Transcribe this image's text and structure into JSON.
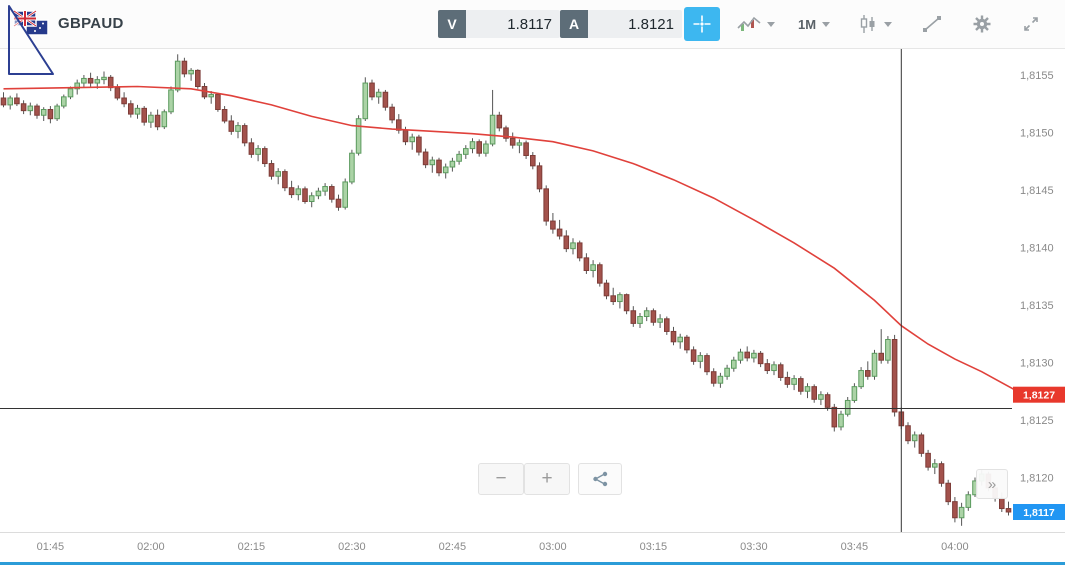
{
  "toolbar": {
    "symbol": "GBPAUD",
    "sell_label": "V",
    "sell_price": "1.8117",
    "buy_label": "A",
    "buy_price": "1.8121",
    "timeframe": "1M"
  },
  "chart_controls": {
    "zoom_out": "−",
    "zoom_in": "+",
    "scroll_to_latest": "»"
  },
  "colors": {
    "accent_blue": "#3db7f0",
    "bottom_bar": "#2b9cd8",
    "candle_up_fill": "#abd3a6",
    "candle_up_stroke": "#5b9a5e",
    "candle_down_fill": "#a3524c",
    "candle_down_stroke": "#7d3d38",
    "ma_line": "#e0413b",
    "tag_red": "#e8382c",
    "tag_blue": "#2196f3"
  },
  "chart_data": {
    "type": "candlestick",
    "symbol": "GBPAUD",
    "timeframe_minutes": 1,
    "start_time": "01:38",
    "price_encoding": "price = 1.81 + pips/1000",
    "y_axis": {
      "labels": [
        "1,8155",
        "1,8150",
        "1,8145",
        "1,8140",
        "1,8135",
        "1,8130",
        "1,8125",
        "1,8120"
      ],
      "pips": [
        55,
        50,
        45,
        40,
        35,
        30,
        25,
        20
      ]
    },
    "x_axis": [
      "01:45",
      "02:00",
      "02:15",
      "02:30",
      "02:45",
      "03:00",
      "03:15",
      "03:30",
      "03:45",
      "04:00"
    ],
    "hline_pips": 26.0,
    "vline_time": "03:52",
    "ma_price_tag": {
      "text": "1,8127",
      "pips": 27.2
    },
    "last_price_tag": {
      "text": "1,8117",
      "pips": 17.0
    },
    "ma_points": [
      [
        0,
        53.8
      ],
      [
        10,
        53.9
      ],
      [
        20,
        54.0
      ],
      [
        28,
        53.8
      ],
      [
        34,
        53.2
      ],
      [
        40,
        52.4
      ],
      [
        46,
        51.4
      ],
      [
        52,
        50.6
      ],
      [
        58,
        50.3
      ],
      [
        64,
        50.1
      ],
      [
        70,
        49.9
      ],
      [
        76,
        49.6
      ],
      [
        82,
        49.2
      ],
      [
        88,
        48.4
      ],
      [
        94,
        47.3
      ],
      [
        100,
        45.9
      ],
      [
        106,
        44.3
      ],
      [
        112,
        42.4
      ],
      [
        118,
        40.4
      ],
      [
        124,
        38.2
      ],
      [
        130,
        35.4
      ],
      [
        134,
        33.2
      ],
      [
        138,
        31.6
      ],
      [
        142,
        30.3
      ],
      [
        146,
        29.2
      ],
      [
        151,
        27.6
      ]
    ],
    "candles_ohlc_pips": [
      [
        53,
        53.5,
        52.2,
        52.4
      ],
      [
        52.4,
        53.2,
        52,
        53
      ],
      [
        53,
        53.4,
        52.3,
        52.5
      ],
      [
        52.5,
        52.8,
        51.6,
        51.9
      ],
      [
        51.9,
        52.6,
        51.5,
        52.3
      ],
      [
        52.3,
        52.5,
        51.2,
        51.5
      ],
      [
        51.5,
        52.2,
        51,
        52
      ],
      [
        52,
        52.3,
        50.8,
        51.2
      ],
      [
        51.2,
        52.5,
        51,
        52.3
      ],
      [
        52.3,
        53.3,
        52.1,
        53.1
      ],
      [
        53.1,
        54,
        52.9,
        53.8
      ],
      [
        53.8,
        54.6,
        53.3,
        54.3
      ],
      [
        54.3,
        55,
        53.9,
        54.7
      ],
      [
        54.7,
        55.2,
        54,
        54.3
      ],
      [
        54.3,
        54.9,
        53.8,
        54.6
      ],
      [
        54.6,
        55.3,
        54.2,
        54.8
      ],
      [
        54.8,
        55,
        53.6,
        53.9
      ],
      [
        53.9,
        54.2,
        52.8,
        53
      ],
      [
        53,
        53.5,
        52.2,
        52.5
      ],
      [
        52.5,
        52.8,
        51.3,
        51.6
      ],
      [
        51.6,
        52.4,
        51.2,
        52.1
      ],
      [
        52.1,
        52.3,
        50.6,
        50.9
      ],
      [
        50.9,
        51.8,
        50.4,
        51.5
      ],
      [
        51.5,
        52,
        50.2,
        50.5
      ],
      [
        50.5,
        52,
        50.3,
        51.8
      ],
      [
        51.8,
        54,
        51.6,
        53.7
      ],
      [
        53.7,
        56.8,
        53.5,
        56.2
      ],
      [
        56.2,
        56.5,
        54.8,
        55.1
      ],
      [
        55.1,
        55.6,
        54.5,
        55.4
      ],
      [
        55.4,
        55.5,
        53.8,
        54
      ],
      [
        54,
        54.3,
        52.9,
        53.1
      ],
      [
        53.1,
        53.6,
        52.5,
        53.3
      ],
      [
        53.3,
        53.4,
        51.8,
        52
      ],
      [
        52,
        52.3,
        50.8,
        51
      ],
      [
        51,
        51.5,
        49.8,
        50.1
      ],
      [
        50.1,
        50.9,
        49.5,
        50.6
      ],
      [
        50.6,
        50.8,
        48.8,
        49.1
      ],
      [
        49.1,
        49.5,
        47.8,
        48.1
      ],
      [
        48.1,
        48.9,
        47.5,
        48.6
      ],
      [
        48.6,
        48.8,
        47,
        47.3
      ],
      [
        47.3,
        47.6,
        45.9,
        46.2
      ],
      [
        46.2,
        46.9,
        45.5,
        46.6
      ],
      [
        46.6,
        46.8,
        44.9,
        45.2
      ],
      [
        45.2,
        45.8,
        44.3,
        44.6
      ],
      [
        44.6,
        45.4,
        44.1,
        45.1
      ],
      [
        45.1,
        45.3,
        43.8,
        44
      ],
      [
        44,
        44.8,
        43.5,
        44.5
      ],
      [
        44.5,
        45.2,
        44.2,
        44.9
      ],
      [
        44.9,
        45.6,
        44.5,
        45.3
      ],
      [
        45.3,
        45.5,
        43.9,
        44.2
      ],
      [
        44.2,
        44.6,
        43.2,
        43.5
      ],
      [
        43.5,
        46,
        43.3,
        45.7
      ],
      [
        45.7,
        48.5,
        45.5,
        48.2
      ],
      [
        48.2,
        51.5,
        48,
        51.2
      ],
      [
        51.2,
        54.8,
        51,
        54.3
      ],
      [
        54.3,
        54.6,
        52.8,
        53.1
      ],
      [
        53.1,
        53.8,
        52.5,
        53.5
      ],
      [
        53.5,
        53.7,
        51.9,
        52.2
      ],
      [
        52.2,
        52.5,
        50.8,
        51.1
      ],
      [
        51.1,
        51.6,
        49.9,
        50.2
      ],
      [
        50.2,
        50.5,
        48.9,
        49.2
      ],
      [
        49.2,
        49.9,
        48.5,
        49.6
      ],
      [
        49.6,
        49.8,
        48,
        48.3
      ],
      [
        48.3,
        48.6,
        46.9,
        47.2
      ],
      [
        47.2,
        47.9,
        46.5,
        47.6
      ],
      [
        47.6,
        47.8,
        46.2,
        46.5
      ],
      [
        46.5,
        47.3,
        46,
        47
      ],
      [
        47,
        47.8,
        46.6,
        47.5
      ],
      [
        47.5,
        48.4,
        47.2,
        48.1
      ],
      [
        48.1,
        48.9,
        47.7,
        48.6
      ],
      [
        48.6,
        49.5,
        48.2,
        49.2
      ],
      [
        49.2,
        49.4,
        47.9,
        48.2
      ],
      [
        48.2,
        49.3,
        47.9,
        49
      ],
      [
        49,
        53.7,
        48.8,
        51.5
      ],
      [
        51.5,
        51.8,
        50.1,
        50.4
      ],
      [
        50.4,
        50.6,
        49.2,
        49.5
      ],
      [
        49.5,
        50,
        48.6,
        48.9
      ],
      [
        48.9,
        49.4,
        48.2,
        49.1
      ],
      [
        49.1,
        49.3,
        47.7,
        48
      ],
      [
        48,
        48.3,
        46.8,
        47.1
      ],
      [
        47.1,
        47.4,
        44.8,
        45.1
      ],
      [
        45.1,
        45.4,
        41.9,
        42.3
      ],
      [
        42.3,
        43,
        41.2,
        41.6
      ],
      [
        41.6,
        42.4,
        40.7,
        41
      ],
      [
        41,
        41.5,
        39.6,
        39.9
      ],
      [
        39.9,
        40.8,
        39.4,
        40.4
      ],
      [
        40.4,
        40.6,
        38.8,
        39.1
      ],
      [
        39.1,
        39.5,
        37.7,
        38
      ],
      [
        38,
        38.9,
        37.4,
        38.5
      ],
      [
        38.5,
        38.7,
        36.6,
        36.9
      ],
      [
        36.9,
        37.2,
        35.5,
        35.8
      ],
      [
        35.8,
        36.5,
        35,
        35.3
      ],
      [
        35.3,
        36.1,
        34.7,
        35.9
      ],
      [
        35.9,
        36,
        34.2,
        34.5
      ],
      [
        34.5,
        34.9,
        33.1,
        33.4
      ],
      [
        33.4,
        34.3,
        33,
        34
      ],
      [
        34,
        34.8,
        33.6,
        34.5
      ],
      [
        34.5,
        34.7,
        33.2,
        33.5
      ],
      [
        33.5,
        34.2,
        33,
        33.8
      ],
      [
        33.8,
        34,
        32.4,
        32.7
      ],
      [
        32.7,
        33.1,
        31.5,
        31.8
      ],
      [
        31.8,
        32.5,
        31.2,
        32.2
      ],
      [
        32.2,
        32.4,
        30.8,
        31.1
      ],
      [
        31.1,
        31.4,
        29.8,
        30.1
      ],
      [
        30.1,
        30.9,
        29.5,
        30.6
      ],
      [
        30.6,
        30.8,
        28.9,
        29.2
      ],
      [
        29.2,
        29.5,
        27.9,
        28.2
      ],
      [
        28.2,
        29.1,
        27.8,
        28.8
      ],
      [
        28.8,
        29.8,
        28.5,
        29.5
      ],
      [
        29.5,
        30.5,
        29.2,
        30.2
      ],
      [
        30.2,
        31.2,
        29.9,
        30.9
      ],
      [
        30.9,
        31.4,
        30.1,
        30.4
      ],
      [
        30.4,
        31.1,
        30,
        30.8
      ],
      [
        30.8,
        31,
        29.6,
        29.9
      ],
      [
        29.9,
        30.3,
        29,
        29.3
      ],
      [
        29.3,
        30.1,
        28.9,
        29.8
      ],
      [
        29.8,
        30,
        28.4,
        28.7
      ],
      [
        28.7,
        29.2,
        27.8,
        28.1
      ],
      [
        28.1,
        28.9,
        27.6,
        28.6
      ],
      [
        28.6,
        28.8,
        27.2,
        27.5
      ],
      [
        27.5,
        28.2,
        26.9,
        27.9
      ],
      [
        27.9,
        28.1,
        26.5,
        26.8
      ],
      [
        26.8,
        27.5,
        26.3,
        27.2
      ],
      [
        27.2,
        27.4,
        25.8,
        26.1
      ],
      [
        26.1,
        26.4,
        24,
        24.4
      ],
      [
        24.4,
        25.8,
        24.1,
        25.5
      ],
      [
        25.5,
        27,
        25.3,
        26.7
      ],
      [
        26.7,
        28.2,
        26.5,
        27.9
      ],
      [
        27.9,
        29.6,
        27.7,
        29.3
      ],
      [
        29.3,
        30.1,
        28.5,
        28.8
      ],
      [
        28.8,
        31.1,
        28.5,
        30.8
      ],
      [
        30.8,
        32.9,
        29.9,
        30.2
      ],
      [
        30.2,
        32.3,
        29.9,
        32
      ],
      [
        32,
        32.4,
        25.3,
        25.7
      ],
      [
        25.7,
        26.1,
        24.2,
        24.5
      ],
      [
        24.5,
        24.8,
        22.9,
        23.2
      ],
      [
        23.2,
        24,
        22.6,
        23.7
      ],
      [
        23.7,
        23.9,
        21.8,
        22.1
      ],
      [
        22.1,
        22.4,
        20.6,
        20.9
      ],
      [
        20.9,
        21.6,
        20.3,
        21.2
      ],
      [
        21.2,
        21.4,
        19.2,
        19.5
      ],
      [
        19.5,
        19.8,
        17.6,
        17.9
      ],
      [
        17.9,
        18.3,
        16.1,
        16.5
      ],
      [
        16.5,
        17.8,
        15.8,
        17.4
      ],
      [
        17.4,
        18.8,
        17.1,
        18.5
      ],
      [
        18.5,
        20,
        18.3,
        19.7
      ],
      [
        19.7,
        20.7,
        19.3,
        20.3
      ],
      [
        20.3,
        20.5,
        18.8,
        19.1
      ],
      [
        19.1,
        19.5,
        17.9,
        18.2
      ],
      [
        18.2,
        18.7,
        17,
        17.3
      ],
      [
        17.3,
        17.9,
        16.7,
        17
      ]
    ]
  }
}
